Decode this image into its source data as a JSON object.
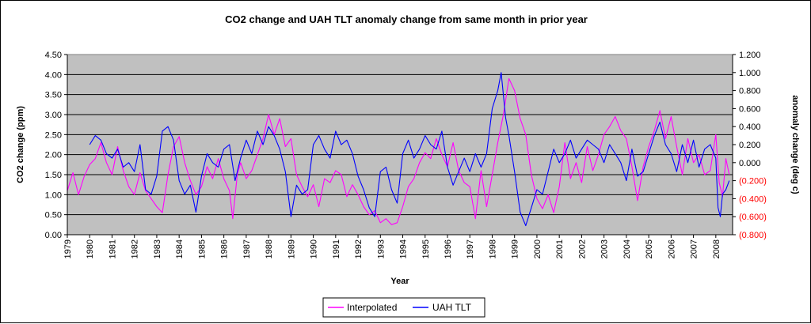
{
  "chart_data": {
    "type": "line",
    "title": "CO2 change and UAH TLT anomaly change from same month in prior year",
    "xlabel": "Year",
    "ylabel_left": "CO2 change (ppm)",
    "ylabel_right": "anomaly change (deg c)",
    "xlim": [
      1979.0,
      2008.75
    ],
    "ylim_left": [
      0,
      4.5
    ],
    "ylim_right": [
      -0.8,
      1.2
    ],
    "x_tick_labels": [
      "1979",
      "1980",
      "1981",
      "1982",
      "1983",
      "1984",
      "1985",
      "1986",
      "1987",
      "1988",
      "1989",
      "1990",
      "1991",
      "1992",
      "1993",
      "1994",
      "1995",
      "1996",
      "1997",
      "1998",
      "1999",
      "2000",
      "2001",
      "2002",
      "2003",
      "2004",
      "2005",
      "2006",
      "2007",
      "2008"
    ],
    "y_left_tick_labels": [
      "0.00",
      "0.50",
      "1.00",
      "1.50",
      "2.00",
      "2.50",
      "3.00",
      "3.50",
      "4.00",
      "4.50"
    ],
    "y_right_tick_labels": [
      "(0.800)",
      "(0.600)",
      "(0.400)",
      "(0.200)",
      "0.000",
      "0.200",
      "0.400",
      "0.600",
      "0.800",
      "1.000",
      "1.200"
    ],
    "grid": true,
    "plot_background": "#c0c0c0",
    "legend_position": "bottom",
    "series": [
      {
        "name": "Interpolated",
        "axis": "left",
        "color": "#ff00ff",
        "points": [
          [
            1979.0,
            1.1
          ],
          [
            1979.25,
            1.55
          ],
          [
            1979.5,
            1.0
          ],
          [
            1979.75,
            1.45
          ],
          [
            1980.0,
            1.75
          ],
          [
            1980.25,
            1.9
          ],
          [
            1980.5,
            2.3
          ],
          [
            1980.75,
            1.8
          ],
          [
            1981.0,
            1.5
          ],
          [
            1981.25,
            2.2
          ],
          [
            1981.5,
            1.6
          ],
          [
            1981.75,
            1.2
          ],
          [
            1982.0,
            1.0
          ],
          [
            1982.25,
            1.55
          ],
          [
            1982.5,
            1.1
          ],
          [
            1982.75,
            0.9
          ],
          [
            1983.0,
            0.7
          ],
          [
            1983.25,
            0.55
          ],
          [
            1983.5,
            1.5
          ],
          [
            1983.75,
            2.2
          ],
          [
            1984.0,
            2.45
          ],
          [
            1984.25,
            1.8
          ],
          [
            1984.5,
            1.35
          ],
          [
            1984.75,
            1.0
          ],
          [
            1985.0,
            1.2
          ],
          [
            1985.25,
            1.7
          ],
          [
            1985.5,
            1.4
          ],
          [
            1985.75,
            1.9
          ],
          [
            1986.0,
            1.4
          ],
          [
            1986.25,
            1.1
          ],
          [
            1986.4,
            0.4
          ],
          [
            1986.6,
            1.5
          ],
          [
            1986.75,
            1.8
          ],
          [
            1987.0,
            1.4
          ],
          [
            1987.25,
            1.6
          ],
          [
            1987.5,
            2.0
          ],
          [
            1987.75,
            2.4
          ],
          [
            1988.0,
            3.0
          ],
          [
            1988.25,
            2.5
          ],
          [
            1988.5,
            2.9
          ],
          [
            1988.75,
            2.2
          ],
          [
            1989.0,
            2.4
          ],
          [
            1989.25,
            1.5
          ],
          [
            1989.5,
            1.2
          ],
          [
            1989.75,
            0.95
          ],
          [
            1990.0,
            1.25
          ],
          [
            1990.25,
            0.7
          ],
          [
            1990.5,
            1.4
          ],
          [
            1990.75,
            1.3
          ],
          [
            1991.0,
            1.6
          ],
          [
            1991.25,
            1.5
          ],
          [
            1991.5,
            0.95
          ],
          [
            1991.75,
            1.25
          ],
          [
            1992.0,
            1.0
          ],
          [
            1992.25,
            0.7
          ],
          [
            1992.5,
            0.5
          ],
          [
            1992.75,
            0.6
          ],
          [
            1993.0,
            0.3
          ],
          [
            1993.25,
            0.4
          ],
          [
            1993.5,
            0.25
          ],
          [
            1993.75,
            0.3
          ],
          [
            1994.0,
            0.7
          ],
          [
            1994.25,
            1.2
          ],
          [
            1994.5,
            1.4
          ],
          [
            1994.75,
            1.8
          ],
          [
            1995.0,
            2.05
          ],
          [
            1995.25,
            1.9
          ],
          [
            1995.5,
            2.4
          ],
          [
            1995.75,
            2.0
          ],
          [
            1996.0,
            1.7
          ],
          [
            1996.25,
            2.3
          ],
          [
            1996.5,
            1.6
          ],
          [
            1996.75,
            1.3
          ],
          [
            1997.0,
            1.2
          ],
          [
            1997.25,
            0.4
          ],
          [
            1997.5,
            1.6
          ],
          [
            1997.75,
            0.7
          ],
          [
            1998.0,
            1.5
          ],
          [
            1998.25,
            2.3
          ],
          [
            1998.5,
            3.0
          ],
          [
            1998.75,
            3.9
          ],
          [
            1999.0,
            3.6
          ],
          [
            1999.25,
            2.9
          ],
          [
            1999.5,
            2.5
          ],
          [
            1999.75,
            1.5
          ],
          [
            2000.0,
            0.9
          ],
          [
            2000.25,
            0.65
          ],
          [
            2000.5,
            1.0
          ],
          [
            2000.75,
            0.55
          ],
          [
            2001.0,
            1.2
          ],
          [
            2001.25,
            2.3
          ],
          [
            2001.5,
            1.4
          ],
          [
            2001.75,
            1.8
          ],
          [
            2002.0,
            1.3
          ],
          [
            2002.25,
            2.2
          ],
          [
            2002.5,
            1.6
          ],
          [
            2002.75,
            2.0
          ],
          [
            2003.0,
            2.5
          ],
          [
            2003.25,
            2.7
          ],
          [
            2003.5,
            2.95
          ],
          [
            2003.75,
            2.6
          ],
          [
            2004.0,
            2.4
          ],
          [
            2004.25,
            1.7
          ],
          [
            2004.5,
            0.85
          ],
          [
            2004.75,
            1.7
          ],
          [
            2005.0,
            2.2
          ],
          [
            2005.25,
            2.6
          ],
          [
            2005.5,
            3.1
          ],
          [
            2005.75,
            2.4
          ],
          [
            2006.0,
            2.95
          ],
          [
            2006.25,
            2.2
          ],
          [
            2006.5,
            1.5
          ],
          [
            2006.75,
            2.4
          ],
          [
            2007.0,
            1.8
          ],
          [
            2007.25,
            2.0
          ],
          [
            2007.5,
            1.5
          ],
          [
            2007.75,
            1.6
          ],
          [
            2008.0,
            2.5
          ],
          [
            2008.15,
            1.3
          ],
          [
            2008.3,
            0.95
          ],
          [
            2008.45,
            1.9
          ],
          [
            2008.6,
            1.5
          ]
        ]
      },
      {
        "name": "UAH TLT",
        "axis": "right",
        "color": "#0000ff",
        "points": [
          [
            1980.0,
            0.2
          ],
          [
            1980.25,
            0.3
          ],
          [
            1980.5,
            0.25
          ],
          [
            1980.75,
            0.1
          ],
          [
            1981.0,
            0.05
          ],
          [
            1981.25,
            0.15
          ],
          [
            1981.5,
            -0.05
          ],
          [
            1981.75,
            0.0
          ],
          [
            1982.0,
            -0.1
          ],
          [
            1982.25,
            0.2
          ],
          [
            1982.5,
            -0.3
          ],
          [
            1982.75,
            -0.35
          ],
          [
            1983.0,
            -0.15
          ],
          [
            1983.25,
            0.35
          ],
          [
            1983.5,
            0.4
          ],
          [
            1983.75,
            0.25
          ],
          [
            1984.0,
            -0.2
          ],
          [
            1984.25,
            -0.35
          ],
          [
            1984.5,
            -0.25
          ],
          [
            1984.75,
            -0.55
          ],
          [
            1985.0,
            -0.15
          ],
          [
            1985.25,
            0.1
          ],
          [
            1985.5,
            0.0
          ],
          [
            1985.75,
            -0.05
          ],
          [
            1986.0,
            0.15
          ],
          [
            1986.25,
            0.2
          ],
          [
            1986.5,
            -0.2
          ],
          [
            1986.75,
            0.05
          ],
          [
            1987.0,
            0.25
          ],
          [
            1987.25,
            0.1
          ],
          [
            1987.5,
            0.35
          ],
          [
            1987.75,
            0.2
          ],
          [
            1988.0,
            0.4
          ],
          [
            1988.25,
            0.3
          ],
          [
            1988.5,
            0.15
          ],
          [
            1988.75,
            -0.1
          ],
          [
            1989.0,
            -0.6
          ],
          [
            1989.25,
            -0.25
          ],
          [
            1989.5,
            -0.35
          ],
          [
            1989.75,
            -0.3
          ],
          [
            1990.0,
            0.2
          ],
          [
            1990.25,
            0.3
          ],
          [
            1990.5,
            0.15
          ],
          [
            1990.75,
            0.05
          ],
          [
            1991.0,
            0.35
          ],
          [
            1991.25,
            0.2
          ],
          [
            1991.5,
            0.25
          ],
          [
            1991.75,
            0.1
          ],
          [
            1992.0,
            -0.15
          ],
          [
            1992.25,
            -0.3
          ],
          [
            1992.5,
            -0.5
          ],
          [
            1992.75,
            -0.6
          ],
          [
            1993.0,
            -0.1
          ],
          [
            1993.25,
            -0.05
          ],
          [
            1993.5,
            -0.3
          ],
          [
            1993.75,
            -0.45
          ],
          [
            1994.0,
            0.1
          ],
          [
            1994.25,
            0.25
          ],
          [
            1994.5,
            0.05
          ],
          [
            1994.75,
            0.15
          ],
          [
            1995.0,
            0.3
          ],
          [
            1995.25,
            0.2
          ],
          [
            1995.5,
            0.15
          ],
          [
            1995.75,
            0.35
          ],
          [
            1996.0,
            -0.05
          ],
          [
            1996.25,
            -0.25
          ],
          [
            1996.5,
            -0.1
          ],
          [
            1996.75,
            0.05
          ],
          [
            1997.0,
            -0.1
          ],
          [
            1997.25,
            0.1
          ],
          [
            1997.5,
            -0.05
          ],
          [
            1997.75,
            0.1
          ],
          [
            1998.0,
            0.6
          ],
          [
            1998.25,
            0.8
          ],
          [
            1998.4,
            1.0
          ],
          [
            1998.6,
            0.5
          ],
          [
            1998.75,
            0.3
          ],
          [
            1999.0,
            -0.1
          ],
          [
            1999.25,
            -0.55
          ],
          [
            1999.5,
            -0.7
          ],
          [
            1999.75,
            -0.5
          ],
          [
            2000.0,
            -0.3
          ],
          [
            2000.25,
            -0.35
          ],
          [
            2000.5,
            -0.1
          ],
          [
            2000.75,
            0.15
          ],
          [
            2001.0,
            0.0
          ],
          [
            2001.25,
            0.1
          ],
          [
            2001.5,
            0.25
          ],
          [
            2001.75,
            0.05
          ],
          [
            2002.0,
            0.15
          ],
          [
            2002.25,
            0.25
          ],
          [
            2002.5,
            0.2
          ],
          [
            2002.75,
            0.15
          ],
          [
            2003.0,
            0.0
          ],
          [
            2003.25,
            0.2
          ],
          [
            2003.5,
            0.1
          ],
          [
            2003.75,
            0.0
          ],
          [
            2004.0,
            -0.2
          ],
          [
            2004.25,
            0.15
          ],
          [
            2004.5,
            -0.15
          ],
          [
            2004.75,
            -0.1
          ],
          [
            2005.0,
            0.1
          ],
          [
            2005.25,
            0.3
          ],
          [
            2005.5,
            0.45
          ],
          [
            2005.75,
            0.2
          ],
          [
            2006.0,
            0.1
          ],
          [
            2006.25,
            -0.1
          ],
          [
            2006.5,
            0.2
          ],
          [
            2006.75,
            0.0
          ],
          [
            2007.0,
            0.25
          ],
          [
            2007.25,
            -0.05
          ],
          [
            2007.5,
            0.15
          ],
          [
            2007.75,
            0.2
          ],
          [
            2008.0,
            0.05
          ],
          [
            2008.1,
            -0.5
          ],
          [
            2008.2,
            -0.6
          ],
          [
            2008.3,
            -0.35
          ],
          [
            2008.45,
            -0.3
          ],
          [
            2008.6,
            -0.2
          ]
        ]
      }
    ]
  }
}
